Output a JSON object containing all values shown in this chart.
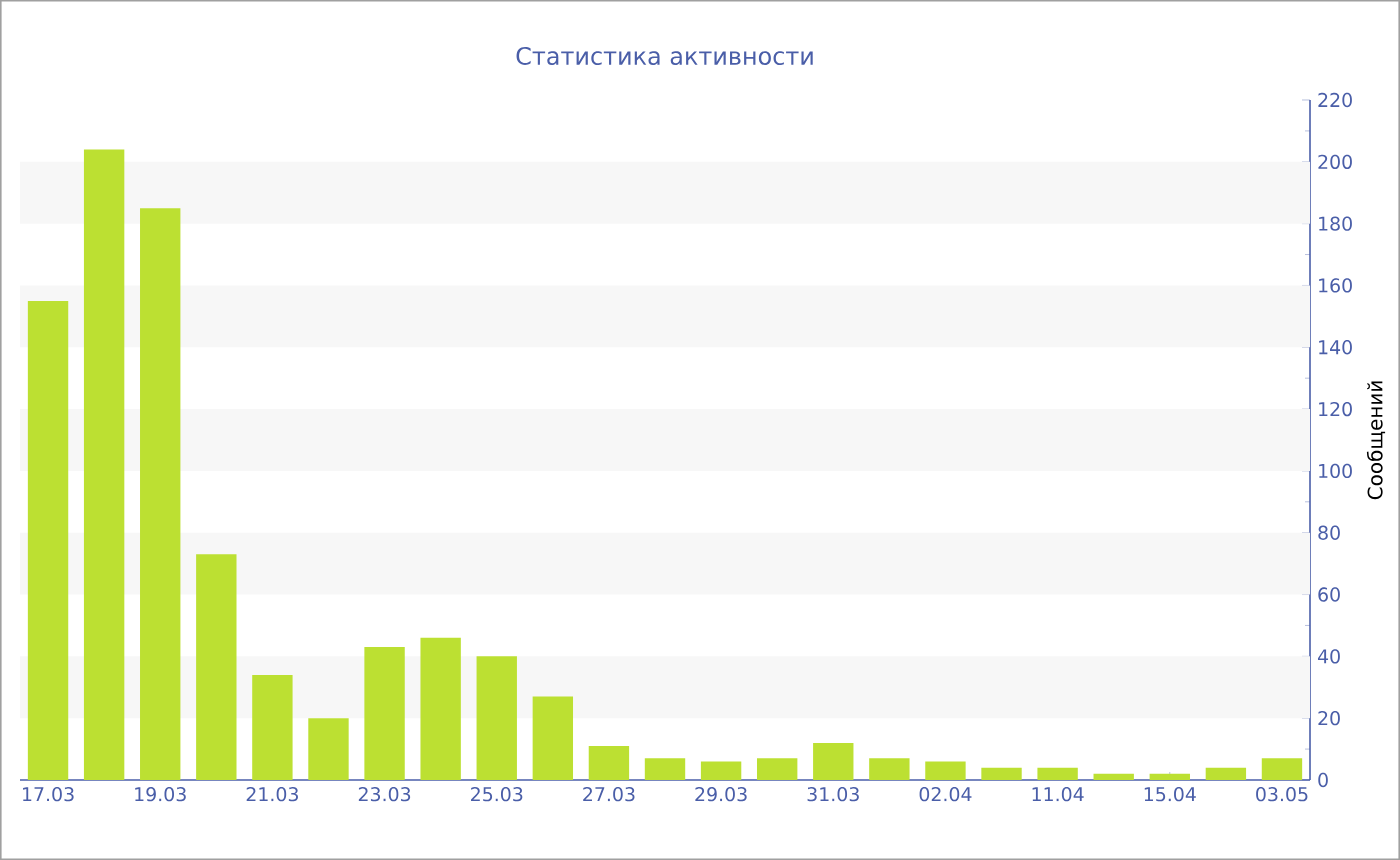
{
  "chart_data": {
    "type": "bar",
    "title": "Статистика активности",
    "ylabel": "Сообщений",
    "categories": [
      "17.03",
      null,
      "19.03",
      null,
      "21.03",
      null,
      "23.03",
      null,
      "25.03",
      null,
      "27.03",
      null,
      "29.03",
      null,
      "31.03",
      null,
      "02.04",
      null,
      "11.04",
      null,
      "15.04",
      null,
      "03.05"
    ],
    "values": [
      155,
      204,
      185,
      73,
      34,
      20,
      43,
      46,
      40,
      27,
      11,
      7,
      6,
      7,
      12,
      7,
      6,
      4,
      4,
      2,
      2,
      4,
      7
    ],
    "color": "#bce032",
    "ylim": [
      0,
      220
    ],
    "yticks": [
      0,
      20,
      40,
      60,
      80,
      100,
      120,
      140,
      160,
      180,
      200,
      220
    ],
    "bands": [
      {
        "axis": "y",
        "from": 20,
        "to": 40,
        "color": "#f7f7f7"
      },
      {
        "axis": "y",
        "from": 60,
        "to": 80,
        "color": "#f7f7f7"
      },
      {
        "axis": "y",
        "from": 100,
        "to": 120,
        "color": "#f7f7f7"
      },
      {
        "axis": "y",
        "from": 140,
        "to": 160,
        "color": "#f7f7f7"
      },
      {
        "axis": "y",
        "from": 180,
        "to": 200,
        "color": "#f7f7f7"
      }
    ]
  }
}
